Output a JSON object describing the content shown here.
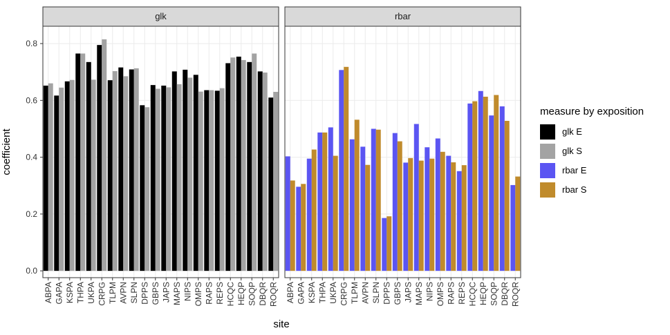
{
  "chart_data": {
    "type": "bar",
    "categories": [
      "ABPA",
      "GAPA",
      "KSPA",
      "THPA",
      "UKPA",
      "CRPG",
      "TLPM",
      "AVPN",
      "SLPN",
      "DPPS",
      "GBPS",
      "JAPS",
      "MAPS",
      "NIPS",
      "OMPS",
      "RAPS",
      "REPS",
      "HCQC",
      "HEQP",
      "SOQP",
      "DBQR",
      "ROQR"
    ],
    "x_label": "site",
    "y_label": "coefficient",
    "legend_title": "measure by exposition",
    "ylim": [
      -0.024,
      0.861
    ],
    "yticks": [
      {
        "value": 0,
        "label": "0.0"
      },
      0.2,
      0.4,
      0.6,
      0.8
    ],
    "grid": true,
    "facets": [
      {
        "title": "glk",
        "series": [
          {
            "name": "glk E",
            "color": "#000000",
            "values": [
              0.652,
              0.617,
              0.667,
              0.765,
              0.735,
              0.795,
              0.671,
              0.716,
              0.709,
              0.583,
              0.654,
              0.652,
              0.702,
              0.708,
              0.69,
              0.636,
              0.634,
              0.731,
              0.754,
              0.735,
              0.702,
              0.61
            ]
          },
          {
            "name": "glk S",
            "color": "#a3a3a3",
            "values": [
              0.66,
              0.645,
              0.672,
              0.765,
              0.673,
              0.815,
              0.703,
              0.685,
              0.713,
              0.576,
              0.641,
              0.646,
              0.657,
              0.68,
              0.631,
              0.636,
              0.643,
              0.751,
              0.742,
              0.765,
              0.698,
              0.63
            ]
          }
        ]
      },
      {
        "title": "rbar",
        "series": [
          {
            "name": "rbar E",
            "color": "#5b55f2",
            "values": [
              0.403,
              0.296,
              0.395,
              0.487,
              0.505,
              0.707,
              0.463,
              0.437,
              0.5,
              0.186,
              0.485,
              0.381,
              0.517,
              0.435,
              0.466,
              0.405,
              0.351,
              0.589,
              0.633,
              0.547,
              0.579,
              0.302
            ]
          },
          {
            "name": "rbar S",
            "color": "#c08b2c",
            "values": [
              0.318,
              0.306,
              0.427,
              0.487,
              0.405,
              0.718,
              0.532,
              0.373,
              0.497,
              0.192,
              0.456,
              0.397,
              0.388,
              0.395,
              0.419,
              0.382,
              0.372,
              0.597,
              0.613,
              0.619,
              0.528,
              0.332
            ]
          }
        ]
      }
    ]
  }
}
